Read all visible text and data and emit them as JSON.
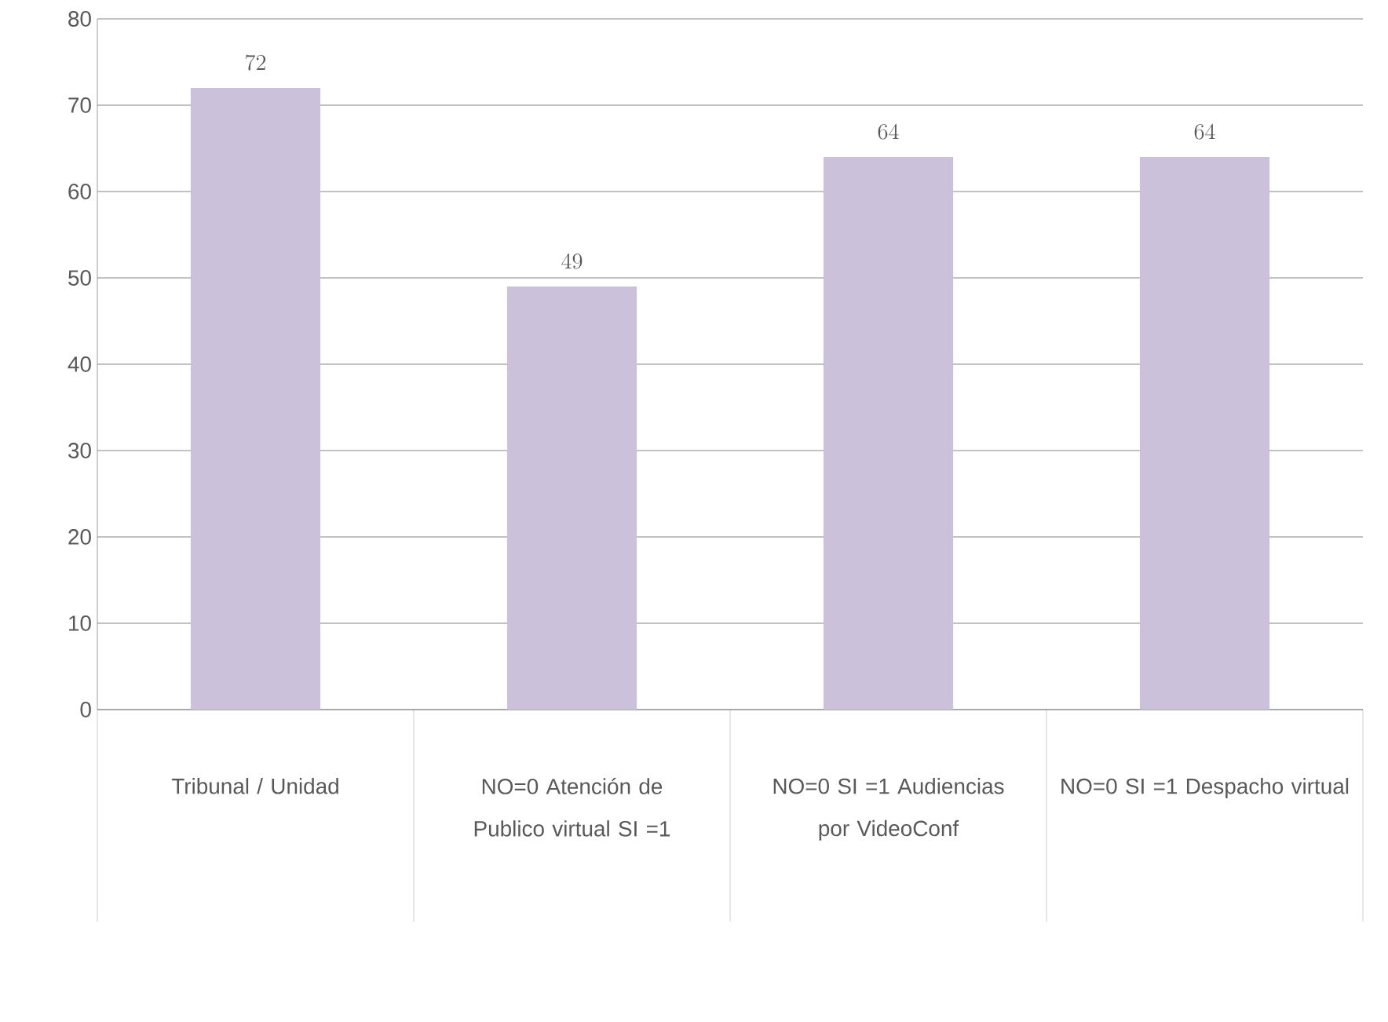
{
  "chart_data": {
    "type": "bar",
    "categories": [
      "Tribunal / Unidad",
      "NO=0 Atención de Publico virtual SI =1",
      "NO=0 SI =1 Audiencias por VideoConf",
      "NO=0 SI =1 Despacho virtual"
    ],
    "values": [
      72,
      49,
      64,
      64
    ],
    "color": "#ccc1da",
    "ylim": [
      0,
      80
    ],
    "yticks": [
      0,
      10,
      20,
      30,
      40,
      50,
      60,
      70,
      80
    ],
    "grid": "y",
    "data_labels": true
  }
}
